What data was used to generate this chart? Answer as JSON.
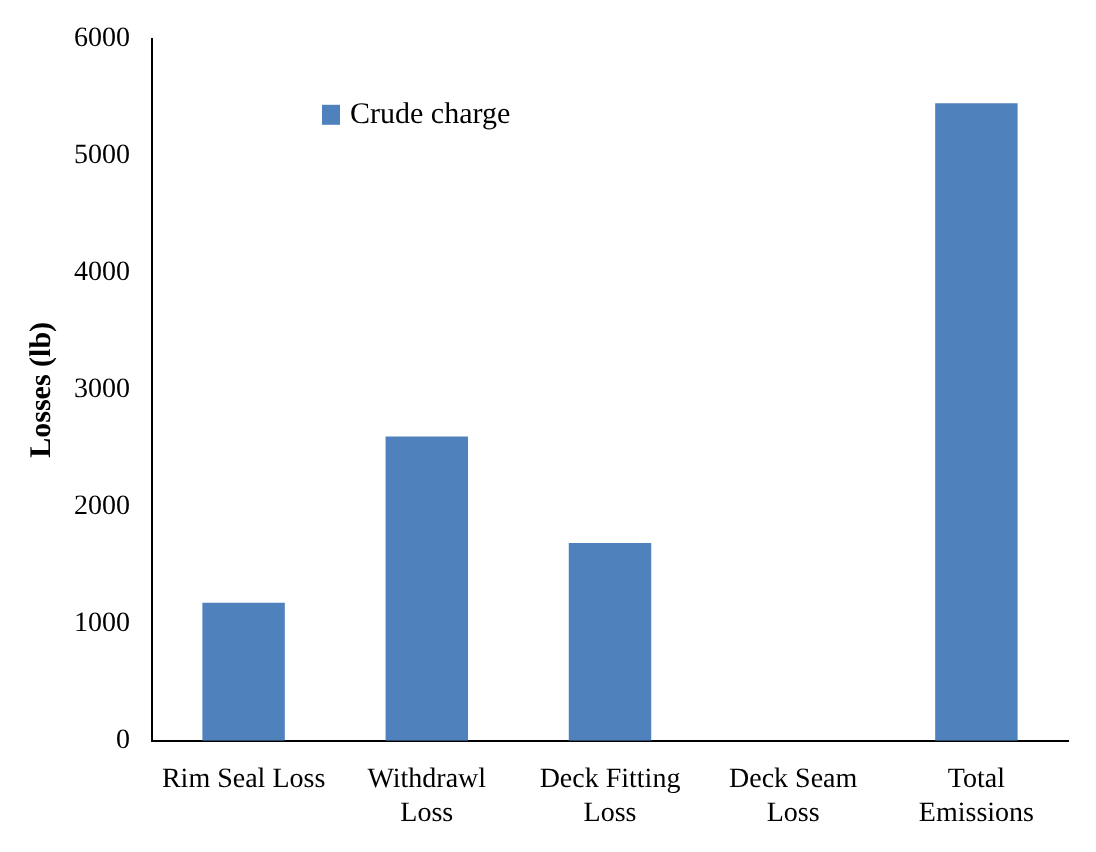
{
  "chart_data": {
    "type": "bar",
    "ylabel": "Losses (lb)",
    "categories": [
      "Rim Seal Loss",
      "Withdrawl Loss",
      "Deck Fitting Loss",
      "Deck Seam Loss",
      "Total Emissions"
    ],
    "series": [
      {
        "name": "Crude charge",
        "color": "#4f81bd",
        "values": [
          1180,
          2600,
          1690,
          0,
          5450
        ]
      }
    ],
    "ylim": [
      0,
      6000
    ],
    "yticks": [
      0,
      1000,
      2000,
      3000,
      4000,
      5000,
      6000
    ],
    "legend": "top left"
  }
}
